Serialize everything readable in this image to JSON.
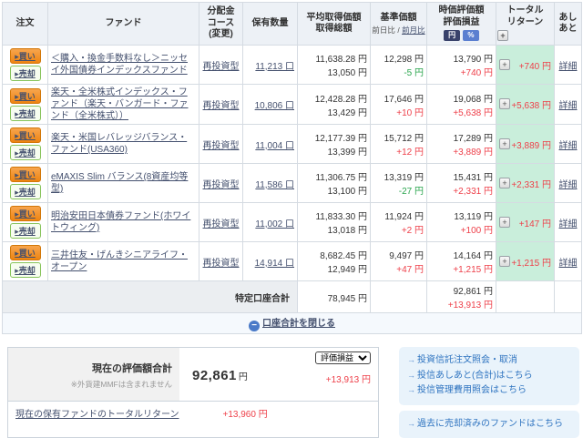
{
  "icons": {
    "minus_circle": "−",
    "plus_box": "+",
    "link_arrow": "→",
    "button_arrow": "▸"
  },
  "table": {
    "headers": {
      "order": "注文",
      "fund": "ファンド",
      "course_l1": "分配金",
      "course_l2": "コース",
      "course_l3": "(変更)",
      "quantity": "保有数量",
      "avg_price_l1": "平均取得価額",
      "avg_price_l2": "取得総額",
      "nav_l1": "基準価額",
      "nav_prev_day": "前日比",
      "nav_sep": "/",
      "nav_prev_month": "前月比",
      "value_l1": "時価評価額",
      "value_l2": "評価損益",
      "yen_btn": "円",
      "pct_btn": "%",
      "total_return_l1": "トータル",
      "total_return_l2": "リターン",
      "ashiato_l1": "あし",
      "ashiato_l2": "あと"
    },
    "buy_label": "買い",
    "sell_label": "売却",
    "detail_label": "詳細",
    "rows": [
      {
        "fund": "＜購入・換金手数料なし＞ニッセイ外国債券インデックスファンド",
        "course": "再投資型",
        "quantity": "11,213 口",
        "avg_price": "11,638.28 円",
        "total_cost": "13,050 円",
        "nav": "12,298 円",
        "nav_change": "-5 円",
        "value": "13,790 円",
        "pl": "+740 円",
        "total_return": "+740 円"
      },
      {
        "fund": "楽天・全米株式インデックス・ファンド（楽天・バンガード・ファンド（全米株式））",
        "course": "再投資型",
        "quantity": "10,806 口",
        "avg_price": "12,428.28 円",
        "total_cost": "13,429 円",
        "nav": "17,646 円",
        "nav_change": "+10 円",
        "value": "19,068 円",
        "pl": "+5,638 円",
        "total_return": "+5,638 円"
      },
      {
        "fund": "楽天・米国レバレッジバランス・ファンド(USA360)",
        "course": "再投資型",
        "quantity": "11,004 口",
        "avg_price": "12,177.39 円",
        "total_cost": "13,399 円",
        "nav": "15,712 円",
        "nav_change": "+12 円",
        "value": "17,289 円",
        "pl": "+3,889 円",
        "total_return": "+3,889 円"
      },
      {
        "fund": "eMAXIS Slim バランス(8資産均等型)",
        "course": "再投資型",
        "quantity": "11,586 口",
        "avg_price": "11,306.75 円",
        "total_cost": "13,100 円",
        "nav": "13,319 円",
        "nav_change": "-27 円",
        "value": "15,431 円",
        "pl": "+2,331 円",
        "total_return": "+2,331 円"
      },
      {
        "fund": "明治安田日本債券ファンド(ホワイトウィング)",
        "course": "再投資型",
        "quantity": "11,002 口",
        "avg_price": "11,833.30 円",
        "total_cost": "13,018 円",
        "nav": "11,924 円",
        "nav_change": "+2 円",
        "value": "13,119 円",
        "pl": "+100 円",
        "total_return": "+147 円"
      },
      {
        "fund": "三井住友・げんきシニアライフ・オープン",
        "course": "再投資型",
        "quantity": "14,914 口",
        "avg_price": "8,682.45 円",
        "total_cost": "12,949 円",
        "nav": "9,497 円",
        "nav_change": "+47 円",
        "value": "14,164 円",
        "pl": "+1,215 円",
        "total_return": "+1,215 円"
      }
    ],
    "total_row": {
      "label": "特定口座合計",
      "total_cost": "78,945 円",
      "value": "92,861 円",
      "pl": "+13,913 円"
    },
    "close_button": "口座合計を閉じる"
  },
  "summary": {
    "valuation_label": "現在の評価額合計",
    "valuation_note": "※外貨建MMFは含まれません",
    "valuation_value": "92,861",
    "valuation_unit": "円",
    "valuation_pl": "+13,913 円",
    "pl_select": "評価損益",
    "total_return_label": "現在の保有ファンドのトータルリターン",
    "total_return_value": "+13,960 円"
  },
  "links": {
    "group1": [
      "投資信託注文照会・取消",
      "投信あしあと(合計)はこちら",
      "投信管理費用照会はこちら"
    ],
    "group2": [
      "過去に売却済みのファンドはこちら"
    ]
  },
  "colors": {
    "gain": "#ee404a",
    "loss": "#2aa54e",
    "return_cell_bg": "#c9eedb",
    "header_bg": "#edf1f6",
    "buy_orange": "#ee8411",
    "sell_green": "#4f9e2e",
    "link_blue": "#2f74c0"
  }
}
